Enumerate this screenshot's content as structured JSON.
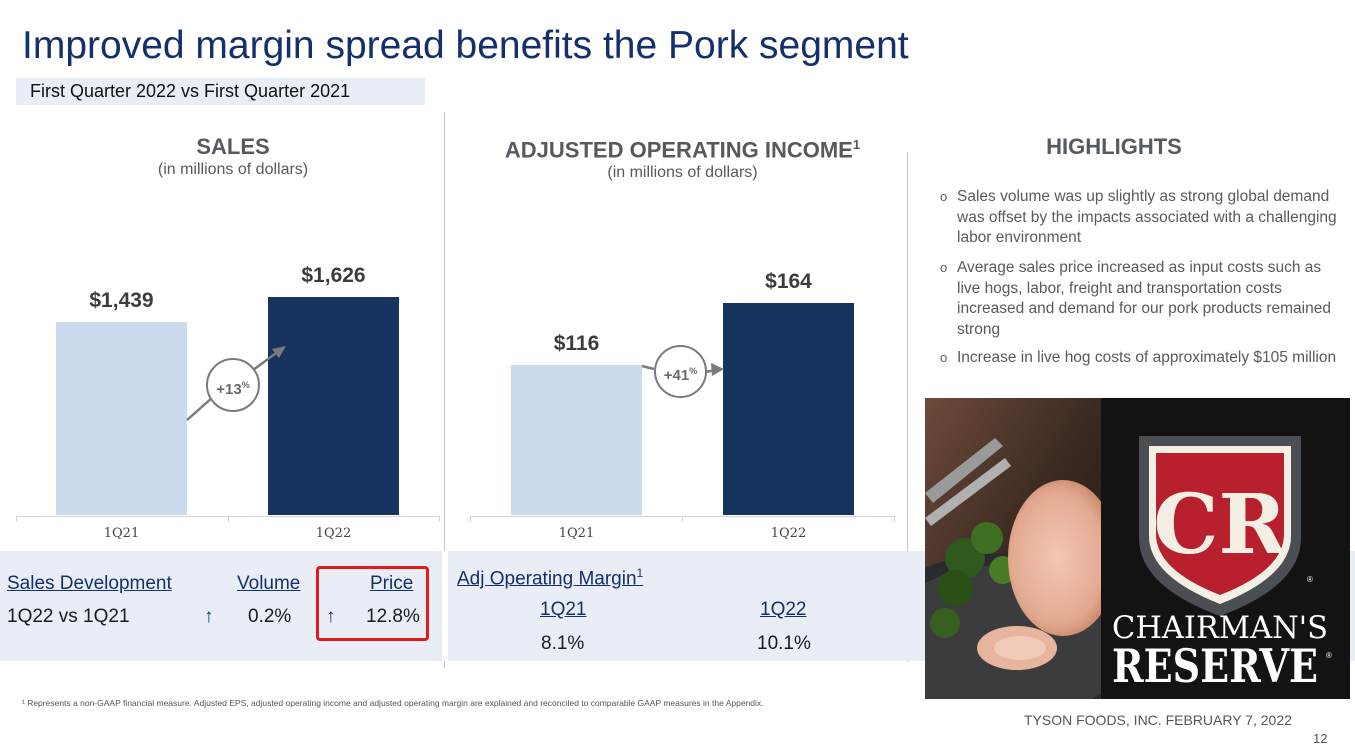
{
  "slide": {
    "title": "Improved margin spread benefits the Pork segment",
    "subtitle": "First Quarter 2022 vs First Quarter 2021",
    "footnote": "¹ Represents a non-GAAP financial measure. Adjusted EPS, adjusted operating income and adjusted operating margin are explained and reconciled to comparable GAAP measures in the Appendix.",
    "company": "TYSON FOODS, INC. FEBRUARY 7, 2022",
    "page_number": "12"
  },
  "chart_data": [
    {
      "type": "bar",
      "title": "SALES",
      "subtitle": "(in millions of dollars)",
      "categories": [
        "1Q21",
        "1Q22"
      ],
      "values": [
        1439,
        1626
      ],
      "value_labels": [
        "$1,439",
        "$1,626"
      ],
      "growth_label": "+13",
      "growth_unit": "%",
      "colors": [
        "#c9dbed",
        "#16345e"
      ]
    },
    {
      "type": "bar",
      "title": "ADJUSTED OPERATING INCOME",
      "title_superscript": "1",
      "subtitle": "(in millions of dollars)",
      "categories": [
        "1Q21",
        "1Q22"
      ],
      "values": [
        116,
        164
      ],
      "value_labels": [
        "$116",
        "$164"
      ],
      "growth_label": "+41",
      "growth_unit": "%",
      "colors": [
        "#c9dbed",
        "#16345e"
      ]
    }
  ],
  "sales_development": {
    "header": "Sales Development",
    "volume_header": "Volume",
    "price_header": "Price",
    "row_label": "1Q22 vs 1Q21",
    "volume_arrow": "↑",
    "volume_value": "0.2%",
    "price_arrow": "↑",
    "price_value": "12.8%"
  },
  "adj_margin": {
    "header": "Adj Operating Margin",
    "header_superscript": "1",
    "q1_label": "1Q21",
    "q2_label": "1Q22",
    "q1_value": "8.1%",
    "q2_value": "10.1%"
  },
  "highlights": {
    "title": "HIGHLIGHTS",
    "bullet": "o",
    "items": [
      "Sales volume was up slightly as strong global demand was offset by the impacts associated with a challenging labor environment",
      "Average sales price increased as input costs such as live hogs, labor, freight and transportation costs increased and demand for our pork products remained strong",
      "Increase in live hog costs of approximately $105 million"
    ]
  },
  "brand": {
    "monogram": "CR",
    "line1": "CHAIRMAN'S",
    "line2": "RESERVE",
    "registered": "®",
    "colors": {
      "red": "#b8202d",
      "grey": "#4b4e53",
      "cream": "#f4efe4"
    }
  }
}
